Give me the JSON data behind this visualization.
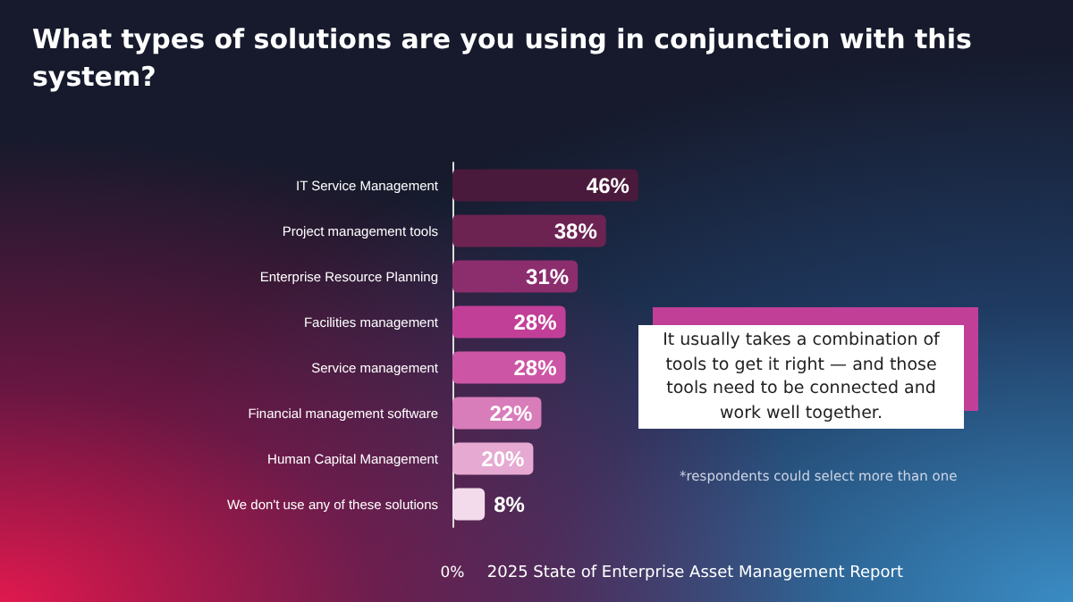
{
  "chart_data": {
    "type": "bar",
    "orientation": "horizontal",
    "title": "What types of solutions are you using in conjunction with this system?",
    "categories": [
      "IT Service Management",
      "Project management tools",
      "Enterprise Resource Planning",
      "Facilities management",
      "Service management",
      "Financial management software",
      "Human Capital Management",
      "We don't use any of these solutions"
    ],
    "values": [
      46,
      38,
      31,
      28,
      28,
      22,
      20,
      8
    ],
    "value_labels": [
      "46%",
      "38%",
      "31%",
      "28%",
      "28%",
      "22%",
      "20%",
      "8%"
    ],
    "colors": [
      "#4a1a3c",
      "#6c2352",
      "#8c2d6e",
      "#c23f98",
      "#cc55a6",
      "#d87cba",
      "#e6aad2",
      "#f3dbec"
    ],
    "annotations": [
      "It usually takes a combination of tools to get it right — and those tools need to be connected and work well together.",
      "*respondents could select more than one",
      "2025 State of Enterprise Asset Management Report",
      "0%"
    ]
  }
}
